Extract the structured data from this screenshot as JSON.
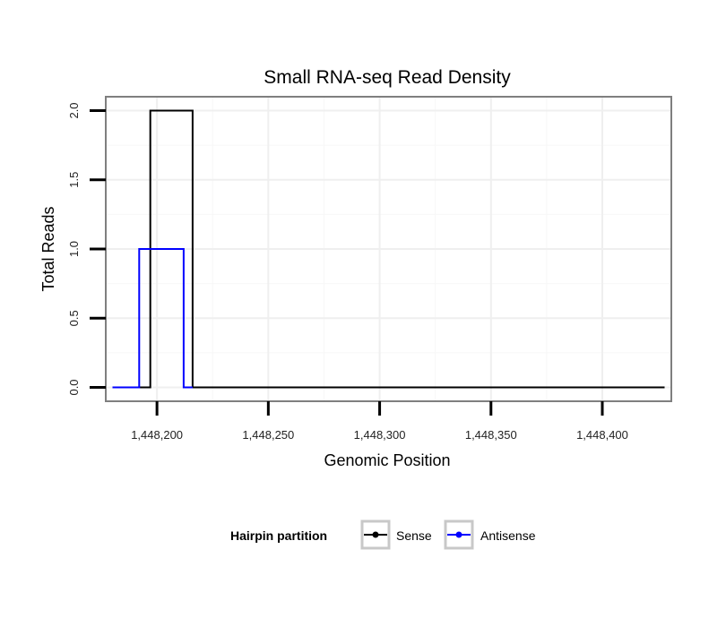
{
  "chart_data": {
    "type": "line",
    "title": "Small RNA-seq Read Density",
    "xlabel": "Genomic Position",
    "ylabel": "Total Reads",
    "xlim": [
      1448177,
      1448431
    ],
    "ylim": [
      -0.1,
      2.1
    ],
    "xticks": [
      1448200,
      1448250,
      1448300,
      1448350,
      1448400
    ],
    "xtick_labels": [
      "1,448,200",
      "1,448,250",
      "1,448,300",
      "1,448,350",
      "1,448,400"
    ],
    "yticks": [
      0,
      0.5,
      1,
      1.5,
      2
    ],
    "ytick_labels": [
      "0.0",
      "0.5",
      "1.0",
      "1.5",
      "2.0"
    ],
    "grid": true,
    "legend_title": "Hairpin partition",
    "legend_position": "bottom",
    "series": [
      {
        "name": "Sense",
        "color": "#000000",
        "x": [
          1448180,
          1448197,
          1448197,
          1448216,
          1448216,
          1448428
        ],
        "y": [
          0,
          0,
          2,
          2,
          0,
          0
        ]
      },
      {
        "name": "Antisense",
        "color": "#0000ff",
        "x": [
          1448180,
          1448192,
          1448192,
          1448212,
          1448212,
          1448216
        ],
        "y": [
          0,
          0,
          1,
          1,
          0,
          0
        ]
      }
    ]
  }
}
